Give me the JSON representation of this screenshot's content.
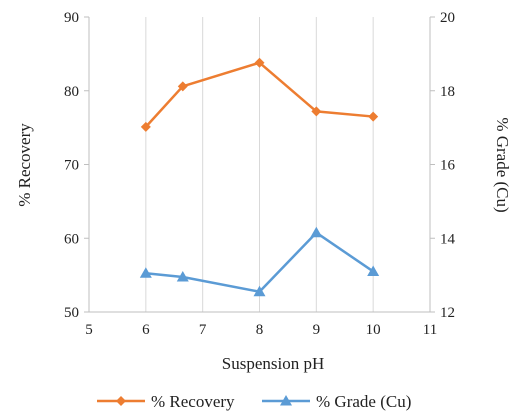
{
  "chart_data": {
    "type": "line",
    "title": "",
    "xlabel": "Suspension pH",
    "ylabel": "% Recovery",
    "y2label": "% Grade (Cu)",
    "xlim": [
      5,
      11
    ],
    "ylim": [
      50,
      90
    ],
    "y2lim": [
      12,
      20
    ],
    "x_ticks": [
      "5",
      "6",
      "7",
      "8",
      "9",
      "10",
      "11"
    ],
    "y_ticks": [
      "50",
      "60",
      "70",
      "80",
      "90"
    ],
    "y2_ticks": [
      "12",
      "14",
      "16",
      "18",
      "20"
    ],
    "grid": "vertical",
    "legend_position": "bottom",
    "series": [
      {
        "name": "% Recovery",
        "axis": "left",
        "color": "#ED7D31",
        "marker": "diamond",
        "points": [
          [
            6,
            75.1
          ],
          [
            6.65,
            80.6
          ],
          [
            8,
            83.8
          ],
          [
            9,
            77.2
          ],
          [
            10,
            76.5
          ]
        ]
      },
      {
        "name": "% Grade (Cu)",
        "axis": "right",
        "color": "#5B9BD5",
        "marker": "triangle",
        "points": [
          [
            6,
            13.05
          ],
          [
            6.65,
            12.95
          ],
          [
            8,
            12.55
          ],
          [
            9,
            14.15
          ],
          [
            10,
            13.1
          ]
        ]
      }
    ]
  }
}
